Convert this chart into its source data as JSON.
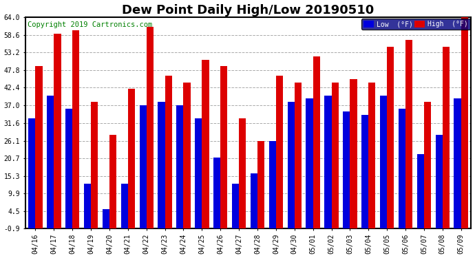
{
  "title": "Dew Point Daily High/Low 20190510",
  "copyright": "Copyright 2019 Cartronics.com",
  "categories": [
    "04/16",
    "04/17",
    "04/18",
    "04/19",
    "04/20",
    "04/21",
    "04/22",
    "04/23",
    "04/24",
    "04/25",
    "04/26",
    "04/27",
    "04/28",
    "04/29",
    "04/30",
    "05/01",
    "05/02",
    "05/03",
    "05/04",
    "05/05",
    "05/06",
    "05/07",
    "05/08",
    "05/09"
  ],
  "high": [
    49,
    59,
    60,
    38,
    28,
    42,
    61,
    46,
    44,
    51,
    49,
    33,
    26,
    46,
    44,
    52,
    44,
    45,
    44,
    55,
    57,
    38,
    55,
    64
  ],
  "low": [
    33,
    40,
    36,
    13,
    5,
    13,
    37,
    38,
    37,
    33,
    21,
    13,
    16,
    26,
    38,
    39,
    40,
    35,
    34,
    40,
    36,
    22,
    28,
    39
  ],
  "ylim_min": -0.9,
  "ylim_max": 64.0,
  "yticks": [
    -0.9,
    4.5,
    9.9,
    15.3,
    20.7,
    26.1,
    31.6,
    37.0,
    42.4,
    47.8,
    53.2,
    58.6,
    64.0
  ],
  "ytick_labels": [
    "-0.9",
    "4.5",
    "9.9",
    "15.3",
    "20.7",
    "26.1",
    "31.6",
    "37.0",
    "42.4",
    "47.8",
    "53.2",
    "58.6",
    "64.0"
  ],
  "bar_width": 0.38,
  "low_color": "#0000dd",
  "high_color": "#dd0000",
  "bg_color": "#ffffff",
  "plot_bg_color": "#ffffff",
  "grid_color": "#aaaaaa",
  "border_color": "#000000",
  "legend_low_label": "Low  (°F)",
  "legend_high_label": "High  (°F)",
  "title_fontsize": 13,
  "copyright_fontsize": 7.5
}
